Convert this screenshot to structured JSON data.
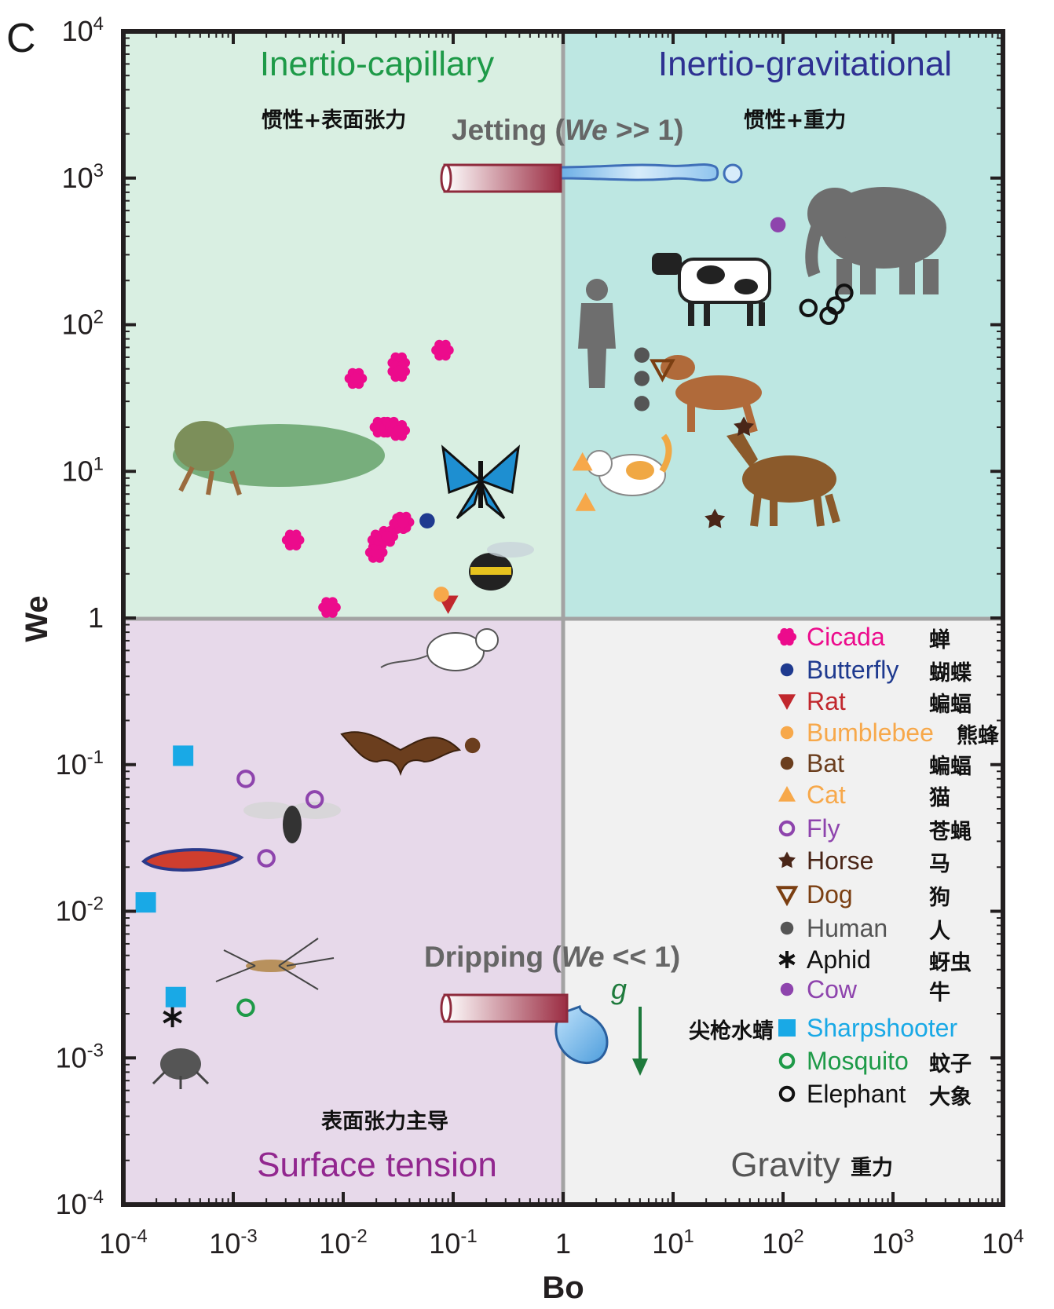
{
  "panel_letter": "C",
  "chart_data": {
    "type": "scatter",
    "xlabel": "Bo",
    "ylabel": "We",
    "xscale": "log",
    "yscale": "log",
    "xlim": [
      0.0001,
      10000
    ],
    "ylim": [
      0.0001,
      10000
    ],
    "x_ticks": [
      {
        "base": "10",
        "exp": "-4"
      },
      {
        "base": "10",
        "exp": "-3"
      },
      {
        "base": "10",
        "exp": "-2"
      },
      {
        "base": "10",
        "exp": "-1"
      },
      {
        "base": "1",
        "exp": ""
      },
      {
        "base": "10",
        "exp": "1"
      },
      {
        "base": "10",
        "exp": "2"
      },
      {
        "base": "10",
        "exp": "3"
      },
      {
        "base": "10",
        "exp": "4"
      }
    ],
    "y_ticks": [
      {
        "base": "10",
        "exp": "-4"
      },
      {
        "base": "10",
        "exp": "-3"
      },
      {
        "base": "10",
        "exp": "-2"
      },
      {
        "base": "10",
        "exp": "-1"
      },
      {
        "base": "1",
        "exp": ""
      },
      {
        "base": "10",
        "exp": "1"
      },
      {
        "base": "10",
        "exp": "2"
      },
      {
        "base": "10",
        "exp": "3"
      },
      {
        "base": "10",
        "exp": "4"
      }
    ],
    "regions": [
      {
        "name": "Inertio-capillary",
        "cn": "惯性+表面张力",
        "color": "#1e9a48",
        "fill": "#d9efe2"
      },
      {
        "name": "Inertio-gravitational",
        "cn": "惯性+重力",
        "color": "#2e3192",
        "fill": "#bde7e2"
      },
      {
        "name": "Surface tension",
        "cn": "表面张力主导",
        "color": "#92278f",
        "fill": "#e7d9ea"
      },
      {
        "name": "Gravity",
        "cn": "重力",
        "color": "#555555",
        "fill": "#f1f1f1"
      }
    ],
    "annotations": {
      "jetting_prefix": "Jetting (",
      "jetting_var": "We",
      "jetting_suffix": " >> 1)",
      "dripping_prefix": "Dripping (",
      "dripping_var": "We",
      "dripping_suffix": " << 1)",
      "gravity_symbol": "g"
    },
    "series": [
      {
        "name": "Cicada",
        "cn": "蝉",
        "color": "#ec0b8c",
        "marker": "flower",
        "points": [
          [
            0.0035,
            3.4
          ],
          [
            0.0075,
            1.18
          ],
          [
            0.013,
            43
          ],
          [
            0.02,
            2.8
          ],
          [
            0.021,
            3.4
          ],
          [
            0.022,
            20
          ],
          [
            0.025,
            3.6
          ],
          [
            0.027,
            20
          ],
          [
            0.032,
            55
          ],
          [
            0.032,
            48
          ],
          [
            0.032,
            19
          ],
          [
            0.033,
            4.4
          ],
          [
            0.035,
            4.5
          ],
          [
            0.08,
            67
          ]
        ]
      },
      {
        "name": "Butterfly",
        "cn": "蝴蝶",
        "color": "#1f3a8f",
        "marker": "circle",
        "points": [
          [
            0.058,
            4.6
          ]
        ]
      },
      {
        "name": "Rat",
        "cn": "蝙蝠",
        "color": "#c1272d",
        "marker": "triangle-down",
        "points": [
          [
            0.09,
            1.25
          ]
        ]
      },
      {
        "name": "Bumblebee",
        "cn": "熊蜂",
        "color": "#f7a84a",
        "marker": "circle",
        "points": [
          [
            0.078,
            1.45
          ]
        ]
      },
      {
        "name": "Bat",
        "cn": "蝙蝠",
        "color": "#6b3e1e",
        "marker": "circle",
        "points": [
          [
            0.15,
            0.135
          ]
        ]
      },
      {
        "name": "Cat",
        "cn": "猫",
        "color": "#f7a84a",
        "marker": "triangle-up",
        "points": [
          [
            1.5,
            11.5
          ],
          [
            1.6,
            6.1
          ]
        ]
      },
      {
        "name": "Fly",
        "cn": "苍蝇",
        "color": "#8e44ad",
        "marker": "ring",
        "points": [
          [
            0.0013,
            0.08
          ],
          [
            0.002,
            0.023
          ],
          [
            0.0055,
            0.058
          ]
        ]
      },
      {
        "name": "Horse",
        "cn": "马",
        "color": "#4a2618",
        "marker": "star5",
        "points": [
          [
            44,
            20
          ],
          [
            24,
            4.7
          ]
        ]
      },
      {
        "name": "Dog",
        "cn": "狗",
        "color": "#7b3f12",
        "marker": "triangle-down-open",
        "points": [
          [
            8,
            50
          ]
        ]
      },
      {
        "name": "Human",
        "cn": "人",
        "color": "#555555",
        "marker": "circle",
        "points": [
          [
            5.2,
            62
          ],
          [
            5.2,
            43
          ],
          [
            5.2,
            29
          ]
        ]
      },
      {
        "name": "Aphid",
        "cn": "蚜虫",
        "color": "#111111",
        "marker": "asterisk",
        "points": [
          [
            0.00028,
            0.0019
          ]
        ]
      },
      {
        "name": "Cow",
        "cn": "牛",
        "color": "#8e44ad",
        "marker": "circle",
        "points": [
          [
            90,
            480
          ]
        ]
      },
      {
        "name": "Sharpshooter",
        "cn": "尖枪水蜻",
        "color": "#19a9e6",
        "marker": "square",
        "points": [
          [
            0.00035,
            0.115
          ],
          [
            0.00016,
            0.0115
          ],
          [
            0.0003,
            0.0026
          ]
        ]
      },
      {
        "name": "Mosquito",
        "cn": "蚊子",
        "color": "#1e9a48",
        "marker": "ring",
        "points": [
          [
            0.0013,
            0.0022
          ]
        ]
      },
      {
        "name": "Elephant",
        "cn": "大象",
        "color": "#111111",
        "marker": "ring",
        "points": [
          [
            170,
            130
          ],
          [
            260,
            115
          ],
          [
            300,
            135
          ],
          [
            360,
            165
          ]
        ]
      }
    ]
  }
}
